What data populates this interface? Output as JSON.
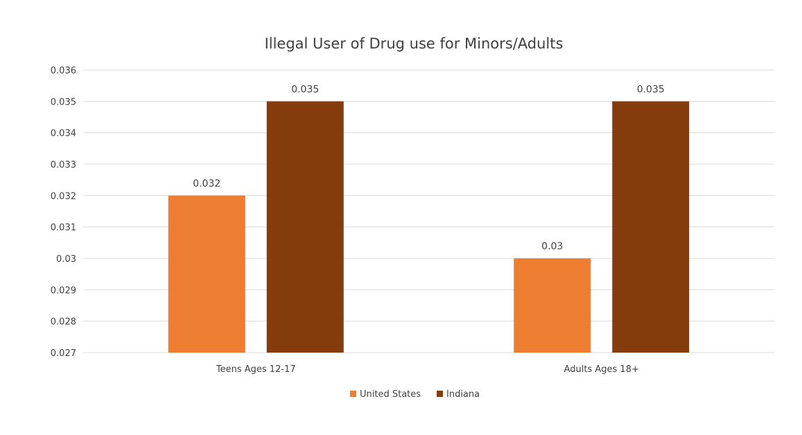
{
  "chart_data": {
    "type": "bar",
    "title": "Illegal User of Drug use for Minors/Adults",
    "xlabel": "",
    "ylabel": "",
    "categories": [
      "Teens Ages 12-17",
      "Adults Ages 18+"
    ],
    "series": [
      {
        "name": "United States",
        "values": [
          0.032,
          0.03
        ],
        "labels": [
          "0.032",
          "0.03"
        ],
        "color": "#ED7D31"
      },
      {
        "name": "Indiana",
        "values": [
          0.035,
          0.035
        ],
        "labels": [
          "0.035",
          "0.035"
        ],
        "color": "#843C0C"
      }
    ],
    "ylim": [
      0.027,
      0.036
    ],
    "yticks": [
      "0.027",
      "0.028",
      "0.029",
      "0.03",
      "0.031",
      "0.032",
      "0.033",
      "0.034",
      "0.035",
      "0.036"
    ],
    "grid": true,
    "gridline_color": "#D9D9D9",
    "legend_position": "bottom"
  }
}
